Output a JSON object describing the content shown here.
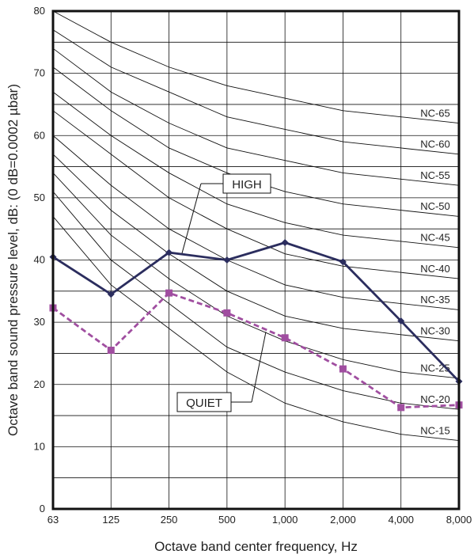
{
  "chart_data": {
    "type": "line",
    "categories": [
      "63",
      "125",
      "250",
      "500",
      "1,000",
      "2,000",
      "4,000",
      "8,000"
    ],
    "xlabel": "Octave band center frequency, Hz",
    "ylabel": "Octave band sound pressure level, dB: (0 dB=0.0002 µbar)",
    "ylim": [
      0,
      80
    ],
    "yticks": [
      "0",
      "10",
      "20",
      "30",
      "40",
      "50",
      "60",
      "70",
      "80"
    ],
    "grid": true,
    "series": [
      {
        "name": "HIGH",
        "values": [
          40.5,
          34.5,
          41.2,
          40.0,
          42.8,
          39.7,
          30.2,
          20.5
        ],
        "color": "#2b2d5e",
        "marker": "diamond",
        "dash": false
      },
      {
        "name": "QUIET",
        "values": [
          32.3,
          25.5,
          34.7,
          31.5,
          27.5,
          22.5,
          16.3,
          16.7
        ],
        "color": "#a04ea0",
        "marker": "square",
        "dash": true
      }
    ],
    "nc_curves": [
      {
        "label": "NC-65",
        "values": [
          80,
          75,
          71,
          68,
          66,
          64,
          63,
          62
        ]
      },
      {
        "label": "NC-60",
        "values": [
          77,
          71,
          67,
          63,
          61,
          59,
          58,
          57
        ]
      },
      {
        "label": "NC-55",
        "values": [
          74,
          67,
          62,
          58,
          56,
          54,
          53,
          52
        ]
      },
      {
        "label": "NC-50",
        "values": [
          71,
          64,
          58,
          54,
          51,
          49,
          48,
          47
        ]
      },
      {
        "label": "NC-45",
        "values": [
          67,
          60,
          54,
          49,
          46,
          44,
          43,
          42
        ]
      },
      {
        "label": "NC-40",
        "values": [
          64,
          57,
          50,
          45,
          41,
          39,
          38,
          37
        ]
      },
      {
        "label": "NC-35",
        "values": [
          60,
          52,
          45,
          40,
          36,
          34,
          33,
          32
        ]
      },
      {
        "label": "NC-30",
        "values": [
          57,
          48,
          41,
          35,
          31,
          29,
          28,
          27
        ]
      },
      {
        "label": "NC-25",
        "values": [
          54,
          44,
          37,
          31,
          27,
          24,
          22,
          21
        ]
      },
      {
        "label": "NC-20",
        "values": [
          51,
          40,
          33,
          26,
          22,
          19,
          17,
          16
        ]
      },
      {
        "label": "NC-15",
        "values": [
          47,
          36,
          29,
          22,
          17,
          14,
          12,
          11
        ]
      }
    ],
    "annotations": [
      "HIGH",
      "QUIET"
    ]
  },
  "colors": {
    "axis": "#111111",
    "grid": "#111111",
    "nc_curve": "#111111"
  }
}
